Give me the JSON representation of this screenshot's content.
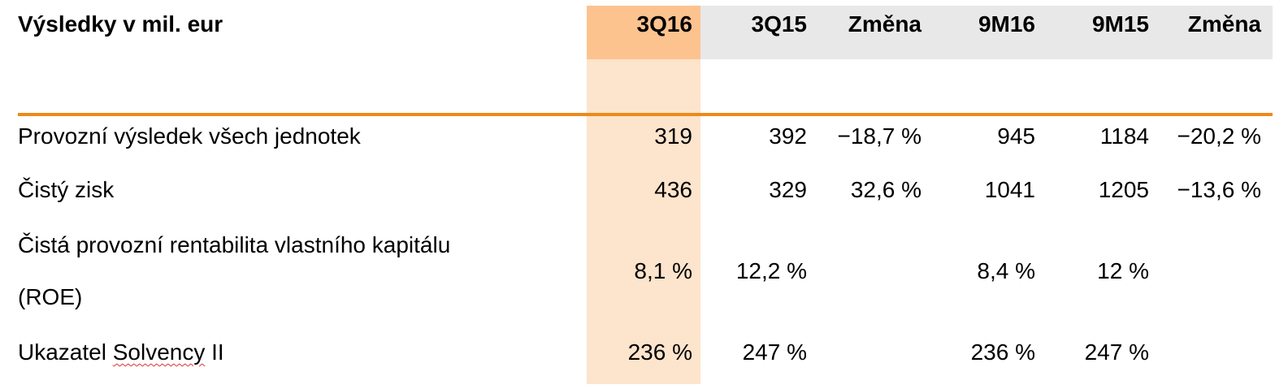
{
  "header": {
    "title": "Výsledky v mil. eur",
    "columns": [
      "3Q16",
      "3Q15",
      "Změna",
      "9M16",
      "9M15",
      "Změna"
    ]
  },
  "rows": [
    {
      "label": "Provozní výsledek všech jednotek",
      "values": [
        "319",
        "392",
        "−18,7 %",
        "945",
        "1184",
        "−20,2 %"
      ]
    },
    {
      "label": "Čistý zisk",
      "values": [
        "436",
        "329",
        "32,6 %",
        "1041",
        "1205",
        "−13,6 %"
      ]
    },
    {
      "label_line1": "Čistá provozní rentabilita vlastního kapitálu",
      "label_line2": "(ROE)",
      "values": [
        "8,1 %",
        "12,2 %",
        "",
        "8,4 %",
        "12 %",
        ""
      ]
    },
    {
      "label_part1": "Ukazatel ",
      "label_part2": "Solvency",
      "label_part3": " II",
      "values": [
        "236 %",
        "247 %",
        "",
        "236 %",
        "247 %",
        ""
      ]
    }
  ],
  "colors": {
    "highlight_header": "#fcc38f",
    "highlight_column": "#fde4cc",
    "header_grey": "#e8e8e8",
    "rule": "#ec8a1c"
  }
}
